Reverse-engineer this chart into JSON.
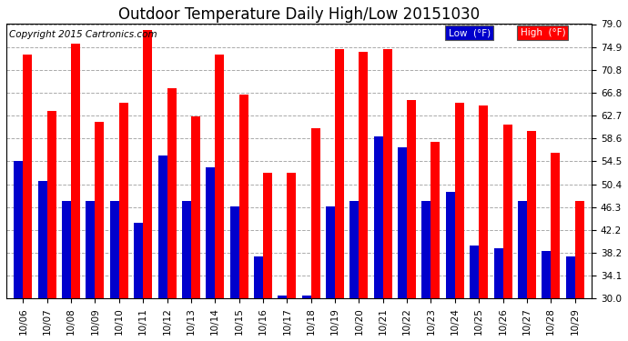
{
  "title": "Outdoor Temperature Daily High/Low 20151030",
  "copyright": "Copyright 2015 Cartronics.com",
  "legend_low": "Low  (°F)",
  "legend_high": "High  (°F)",
  "categories": [
    "10/06",
    "10/07",
    "10/08",
    "10/09",
    "10/10",
    "10/11",
    "10/12",
    "10/13",
    "10/14",
    "10/15",
    "10/16",
    "10/17",
    "10/18",
    "10/19",
    "10/20",
    "10/21",
    "10/22",
    "10/23",
    "10/24",
    "10/25",
    "10/26",
    "10/27",
    "10/28",
    "10/29"
  ],
  "high": [
    73.5,
    63.5,
    75.5,
    61.5,
    65.0,
    78.0,
    67.5,
    62.5,
    73.5,
    66.5,
    52.5,
    52.5,
    60.5,
    74.5,
    74.0,
    74.5,
    65.5,
    58.0,
    65.0,
    64.5,
    61.0,
    60.0,
    56.0,
    47.5
  ],
  "low": [
    54.5,
    51.0,
    47.5,
    47.5,
    47.5,
    43.5,
    55.5,
    47.5,
    53.5,
    46.5,
    37.5,
    30.5,
    30.5,
    46.5,
    47.5,
    59.0,
    57.0,
    47.5,
    49.0,
    39.5,
    39.0,
    47.5,
    38.5,
    37.5
  ],
  "ylim": [
    30.0,
    79.0
  ],
  "yticks": [
    30.0,
    34.1,
    38.2,
    42.2,
    46.3,
    50.4,
    54.5,
    58.6,
    62.7,
    66.8,
    70.8,
    74.9,
    79.0
  ],
  "bar_color_high": "#ff0000",
  "bar_color_low": "#0000cc",
  "bg_color": "#ffffff",
  "grid_color": "#aaaaaa",
  "title_fontsize": 12,
  "tick_fontsize": 7.5,
  "copyright_fontsize": 7.5
}
